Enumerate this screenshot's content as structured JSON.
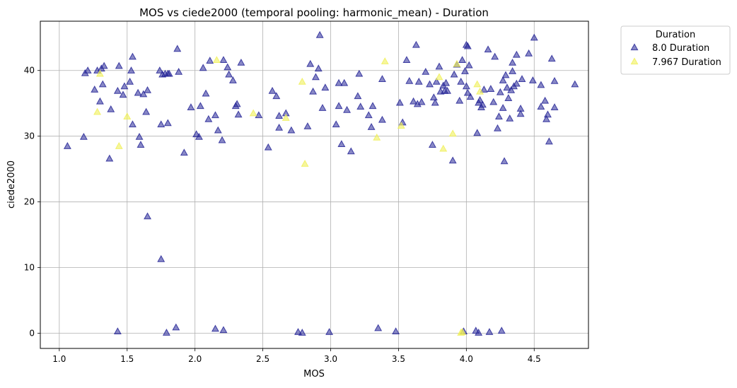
{
  "chart_data": {
    "type": "scatter",
    "title": "MOS vs ciede2000 (temporal pooling: harmonic_mean) - Duration",
    "xlabel": "MOS",
    "ylabel": "ciede2000",
    "xlim": [
      0.86,
      4.9
    ],
    "ylim": [
      -2.3,
      47.5
    ],
    "x_ticks": [
      "1.0",
      "1.5",
      "2.0",
      "2.5",
      "3.0",
      "3.5",
      "4.0",
      "4.5"
    ],
    "y_ticks": [
      "0",
      "10",
      "20",
      "30",
      "40"
    ],
    "x_tick_values": [
      1.0,
      1.5,
      2.0,
      2.5,
      3.0,
      3.5,
      4.0,
      4.5
    ],
    "y_tick_values": [
      0,
      10,
      20,
      30,
      40
    ],
    "grid": true,
    "marker": "triangle",
    "legend": {
      "title": "Duration",
      "placement": "outside-top-right",
      "entries": [
        "8.0 Duration",
        "7.967 Duration"
      ]
    },
    "series": [
      {
        "name": "8.0 Duration",
        "color": "#262697",
        "points": [
          [
            1.06,
            28.5
          ],
          [
            1.18,
            29.9
          ],
          [
            1.19,
            39.6
          ],
          [
            1.21,
            40.0
          ],
          [
            1.26,
            37.1
          ],
          [
            1.28,
            40.0
          ],
          [
            1.3,
            35.3
          ],
          [
            1.31,
            40.3
          ],
          [
            1.32,
            37.9
          ],
          [
            1.33,
            40.7
          ],
          [
            1.37,
            26.6
          ],
          [
            1.38,
            34.1
          ],
          [
            1.43,
            36.9
          ],
          [
            1.44,
            40.7
          ],
          [
            1.47,
            36.3
          ],
          [
            1.48,
            37.6
          ],
          [
            1.52,
            38.3
          ],
          [
            1.53,
            40.0
          ],
          [
            1.54,
            42.1
          ],
          [
            1.54,
            31.8
          ],
          [
            1.58,
            36.6
          ],
          [
            1.59,
            29.9
          ],
          [
            1.6,
            28.7
          ],
          [
            1.62,
            36.4
          ],
          [
            1.64,
            33.7
          ],
          [
            1.65,
            37.0
          ],
          [
            1.65,
            17.8
          ],
          [
            1.74,
            40.0
          ],
          [
            1.75,
            31.8
          ],
          [
            1.76,
            39.4
          ],
          [
            1.78,
            39.5
          ],
          [
            1.8,
            32.0
          ],
          [
            1.8,
            39.5
          ],
          [
            1.81,
            39.5
          ],
          [
            1.87,
            43.3
          ],
          [
            1.88,
            39.8
          ],
          [
            1.92,
            27.5
          ],
          [
            1.75,
            11.3
          ],
          [
            1.97,
            34.4
          ],
          [
            2.01,
            30.3
          ],
          [
            2.03,
            29.9
          ],
          [
            2.04,
            34.6
          ],
          [
            2.06,
            40.4
          ],
          [
            2.08,
            36.5
          ],
          [
            2.1,
            32.6
          ],
          [
            2.11,
            41.5
          ],
          [
            2.15,
            33.2
          ],
          [
            2.17,
            30.9
          ],
          [
            2.2,
            29.4
          ],
          [
            2.21,
            41.6
          ],
          [
            2.24,
            40.5
          ],
          [
            2.25,
            39.4
          ],
          [
            2.28,
            38.5
          ],
          [
            2.3,
            34.6
          ],
          [
            2.31,
            34.9
          ],
          [
            2.32,
            33.3
          ],
          [
            2.34,
            41.2
          ],
          [
            2.47,
            33.2
          ],
          [
            2.54,
            28.3
          ],
          [
            2.57,
            36.9
          ],
          [
            2.6,
            36.1
          ],
          [
            2.62,
            33.1
          ],
          [
            2.62,
            31.3
          ],
          [
            2.67,
            33.5
          ],
          [
            2.71,
            30.9
          ],
          [
            2.76,
            0.2
          ],
          [
            2.79,
            0.1
          ],
          [
            2.83,
            31.5
          ],
          [
            2.85,
            41.0
          ],
          [
            2.87,
            36.8
          ],
          [
            2.89,
            39.0
          ],
          [
            2.91,
            40.3
          ],
          [
            2.92,
            45.4
          ],
          [
            2.94,
            34.3
          ],
          [
            2.96,
            37.4
          ],
          [
            2.99,
            0.2
          ],
          [
            3.04,
            31.8
          ],
          [
            3.06,
            34.6
          ],
          [
            3.06,
            38.1
          ],
          [
            3.08,
            28.8
          ],
          [
            3.1,
            38.1
          ],
          [
            3.12,
            34.0
          ],
          [
            3.15,
            27.7
          ],
          [
            3.2,
            36.1
          ],
          [
            3.21,
            39.5
          ],
          [
            3.22,
            34.5
          ],
          [
            3.28,
            33.2
          ],
          [
            3.3,
            31.4
          ],
          [
            3.31,
            34.6
          ],
          [
            3.35,
            0.8
          ],
          [
            3.38,
            38.7
          ],
          [
            3.38,
            32.5
          ],
          [
            3.48,
            0.3
          ],
          [
            3.51,
            35.1
          ],
          [
            3.53,
            32.1
          ],
          [
            3.56,
            41.6
          ],
          [
            3.58,
            38.4
          ],
          [
            3.61,
            35.3
          ],
          [
            3.63,
            43.9
          ],
          [
            3.64,
            34.9
          ],
          [
            3.65,
            38.3
          ],
          [
            3.67,
            35.2
          ],
          [
            3.7,
            39.8
          ],
          [
            3.73,
            37.9
          ],
          [
            3.75,
            28.7
          ],
          [
            3.76,
            35.9
          ],
          [
            3.77,
            35.1
          ],
          [
            3.78,
            38.3
          ],
          [
            3.8,
            40.6
          ],
          [
            3.81,
            36.8
          ],
          [
            3.83,
            37.7
          ],
          [
            3.84,
            36.9
          ],
          [
            3.85,
            38.1
          ],
          [
            3.86,
            36.9
          ],
          [
            3.9,
            26.3
          ],
          [
            3.91,
            39.4
          ],
          [
            3.93,
            40.9
          ],
          [
            3.95,
            35.4
          ],
          [
            3.96,
            38.3
          ],
          [
            3.97,
            41.6
          ],
          [
            3.98,
            0.3
          ],
          [
            3.99,
            39.9
          ],
          [
            4.0,
            37.6
          ],
          [
            4.0,
            43.9
          ],
          [
            4.01,
            43.7
          ],
          [
            4.01,
            36.6
          ],
          [
            4.02,
            40.8
          ],
          [
            4.03,
            36.0
          ],
          [
            4.07,
            0.4
          ],
          [
            4.08,
            30.5
          ],
          [
            4.09,
            0.1
          ],
          [
            4.09,
            35.1
          ],
          [
            4.1,
            35.5
          ],
          [
            4.11,
            34.4
          ],
          [
            4.12,
            34.8
          ],
          [
            4.13,
            37.1
          ],
          [
            4.16,
            43.2
          ],
          [
            4.17,
            0.2
          ],
          [
            4.18,
            37.2
          ],
          [
            4.2,
            35.2
          ],
          [
            4.21,
            42.1
          ],
          [
            4.23,
            31.2
          ],
          [
            4.24,
            33.0
          ],
          [
            4.25,
            36.7
          ],
          [
            4.26,
            0.4
          ],
          [
            4.27,
            38.5
          ],
          [
            4.27,
            34.3
          ],
          [
            4.28,
            26.2
          ],
          [
            4.29,
            39.3
          ],
          [
            4.3,
            37.4
          ],
          [
            4.31,
            35.8
          ],
          [
            4.32,
            32.7
          ],
          [
            4.33,
            37.0
          ],
          [
            4.34,
            41.2
          ],
          [
            4.34,
            39.9
          ],
          [
            4.35,
            37.6
          ],
          [
            4.37,
            42.4
          ],
          [
            4.37,
            38.0
          ],
          [
            4.4,
            33.4
          ],
          [
            4.4,
            34.2
          ],
          [
            4.41,
            38.7
          ],
          [
            4.46,
            42.6
          ],
          [
            4.49,
            38.5
          ],
          [
            4.5,
            45.0
          ],
          [
            4.55,
            37.8
          ],
          [
            4.55,
            34.5
          ],
          [
            4.58,
            35.4
          ],
          [
            4.59,
            32.6
          ],
          [
            4.6,
            33.3
          ],
          [
            4.61,
            29.2
          ],
          [
            4.63,
            41.8
          ],
          [
            4.65,
            38.4
          ],
          [
            4.65,
            34.4
          ],
          [
            4.8,
            37.9
          ],
          [
            1.43,
            0.3
          ],
          [
            1.79,
            0.1
          ],
          [
            1.86,
            0.9
          ],
          [
            2.15,
            0.7
          ],
          [
            2.21,
            0.5
          ]
        ]
      },
      {
        "name": "7.967 Duration",
        "color": "#f0f05a",
        "points": [
          [
            1.28,
            33.7
          ],
          [
            1.3,
            39.5
          ],
          [
            1.44,
            28.5
          ],
          [
            1.5,
            33.0
          ],
          [
            2.16,
            41.6
          ],
          [
            2.43,
            33.5
          ],
          [
            2.67,
            32.8
          ],
          [
            2.79,
            38.3
          ],
          [
            2.81,
            25.8
          ],
          [
            3.34,
            29.8
          ],
          [
            3.4,
            41.4
          ],
          [
            3.52,
            31.6
          ],
          [
            3.8,
            39.0
          ],
          [
            3.83,
            28.1
          ],
          [
            3.9,
            30.4
          ],
          [
            3.93,
            41.0
          ],
          [
            3.96,
            0.1
          ],
          [
            3.97,
            0.2
          ],
          [
            4.08,
            37.9
          ],
          [
            4.1,
            36.8
          ]
        ]
      }
    ]
  }
}
